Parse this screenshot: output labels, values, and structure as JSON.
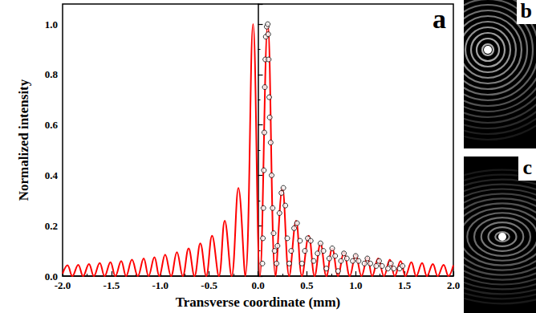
{
  "chart_data": {
    "type": "line",
    "annotation": "a",
    "x_label": "Transverse coordinate (mm)",
    "y_label": "Normalized intensity",
    "xlim": [
      -2,
      2
    ],
    "ylim": [
      0,
      1.08
    ],
    "xticks": [
      {
        "value": -2,
        "label": "-2.0"
      },
      {
        "value": -1.5,
        "label": "-1.5"
      },
      {
        "value": -1,
        "label": "-1.0"
      },
      {
        "value": -0.5,
        "label": "-0.5"
      },
      {
        "value": 0,
        "label": "0.0"
      },
      {
        "value": 0.5,
        "label": "0.5"
      },
      {
        "value": 1,
        "label": "1.0"
      },
      {
        "value": 1.5,
        "label": "1.5"
      },
      {
        "value": 2,
        "label": "2.0"
      }
    ],
    "yticks": [
      {
        "value": 0,
        "label": "0.0"
      },
      {
        "value": 0.2,
        "label": "0.2"
      },
      {
        "value": 0.4,
        "label": "0.4"
      },
      {
        "value": 0.6,
        "label": "0.6"
      },
      {
        "value": 0.8,
        "label": "0.8"
      },
      {
        "value": 1,
        "label": "1.0"
      }
    ],
    "grid": false,
    "series": [
      {
        "type": "line",
        "color": "#ff0000",
        "line_style": "solid",
        "marker": "none",
        "x": [
          -2.0,
          -1.95,
          -1.9,
          -1.84,
          -1.79,
          -1.73,
          -1.68,
          -1.62,
          -1.57,
          -1.51,
          -1.46,
          -1.4,
          -1.35,
          -1.29,
          -1.23,
          -1.17,
          -1.12,
          -1.06,
          -1.01,
          -0.95,
          -0.89,
          -0.83,
          -0.77,
          -0.71,
          -0.65,
          -0.59,
          -0.53,
          -0.47,
          -0.4,
          -0.34,
          -0.27,
          -0.2,
          -0.13,
          -0.05,
          0.02,
          0.1,
          0.18,
          0.25,
          0.32,
          0.39,
          0.45,
          0.52,
          0.58,
          0.64,
          0.7,
          0.76,
          0.82,
          0.88,
          0.94,
          1.0,
          1.06,
          1.12,
          1.17,
          1.23,
          1.29,
          1.35,
          1.4,
          1.46,
          1.51,
          1.57,
          1.62,
          1.68,
          1.73,
          1.79,
          1.84,
          1.9,
          1.95,
          2.0
        ],
        "values": [
          0.01,
          0.043,
          0,
          0.045,
          0,
          0.048,
          0,
          0.052,
          0,
          0.055,
          0,
          0.06,
          0,
          0.065,
          0,
          0.07,
          0,
          0.075,
          0,
          0.085,
          0,
          0.095,
          0,
          0.11,
          0,
          0.13,
          0,
          0.16,
          0,
          0.22,
          0,
          0.35,
          0,
          1.0,
          0,
          1.0,
          0,
          0.35,
          0,
          0.22,
          0,
          0.16,
          0,
          0.13,
          0,
          0.11,
          0,
          0.095,
          0,
          0.085,
          0,
          0.075,
          0,
          0.07,
          0,
          0.065,
          0,
          0.06,
          0,
          0.055,
          0,
          0.052,
          0,
          0.048,
          0,
          0.045,
          0,
          0.043
        ]
      },
      {
        "type": "scatter",
        "color": "#000000",
        "marker": "open_circle",
        "x": [
          0.045,
          0.05,
          0.055,
          0.06,
          0.065,
          0.07,
          0.075,
          0.08,
          0.09,
          0.1,
          0.105,
          0.11,
          0.115,
          0.12,
          0.13,
          0.14,
          0.15,
          0.16,
          0.17,
          0.19,
          0.2,
          0.22,
          0.24,
          0.26,
          0.28,
          0.3,
          0.32,
          0.34,
          0.37,
          0.4,
          0.43,
          0.45,
          0.48,
          0.51,
          0.54,
          0.57,
          0.61,
          0.64,
          0.67,
          0.7,
          0.73,
          0.76,
          0.79,
          0.82,
          0.85,
          0.88,
          0.91,
          0.97,
          1.0,
          1.03,
          1.09,
          1.12,
          1.15,
          1.21,
          1.24,
          1.27,
          1.33,
          1.36,
          1.39,
          1.45,
          1.48
        ],
        "values": [
          0.05,
          0.15,
          0.27,
          0.42,
          0.57,
          0.75,
          0.86,
          0.95,
          0.99,
          1.0,
          0.96,
          0.86,
          0.71,
          0.63,
          0.53,
          0.4,
          0.27,
          0.17,
          0.1,
          0.05,
          0.12,
          0.25,
          0.33,
          0.35,
          0.28,
          0.15,
          0.05,
          0.1,
          0.19,
          0.21,
          0.14,
          0.05,
          0.1,
          0.15,
          0.14,
          0.06,
          0.09,
          0.13,
          0.1,
          0.03,
          0.07,
          0.11,
          0.08,
          0.02,
          0.06,
          0.09,
          0.07,
          0.06,
          0.08,
          0.06,
          0.05,
          0.07,
          0.05,
          0.04,
          0.06,
          0.04,
          0.03,
          0.05,
          0.03,
          0.03,
          0.04
        ]
      }
    ]
  },
  "images": [
    {
      "label": "b"
    },
    {
      "label": "c"
    }
  ]
}
